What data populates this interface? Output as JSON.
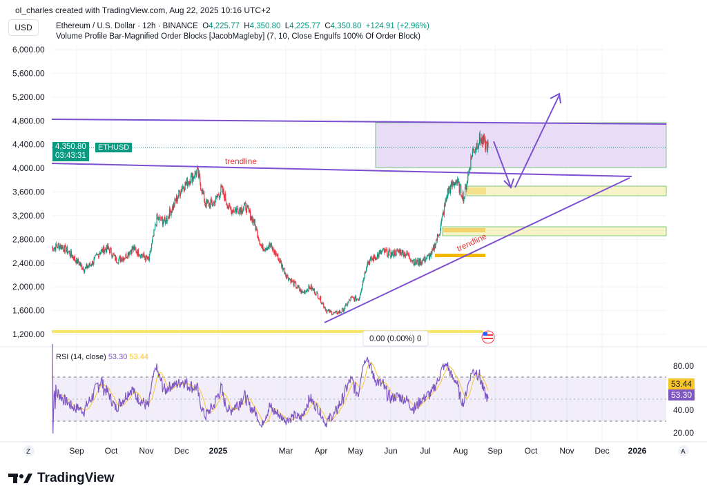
{
  "credit": "ol_charles created with TradingView.com, Aug 22, 2025 10:16 UTC+2",
  "currency": "USD",
  "symbol": {
    "name": "Ethereum / U.S. Dollar · 12h · BINANCE",
    "o_label": "O",
    "o": "4,225.77",
    "h_label": "H",
    "h": "4,350.80",
    "l_label": "L",
    "l": "4,225.77",
    "c_label": "C",
    "c": "4,350.80",
    "change": "+124.91 (+2.96%)"
  },
  "indicator": "Volume Profile Bar-Magnified Order Blocks [JacobMagleby] (7, 10, Close Engulfs 100% Of Order Block)",
  "price_tag": {
    "price": "4,350.80",
    "countdown": "03:43:31",
    "ticker": "ETHUSD"
  },
  "annotations": {
    "trendline_upper": "trendline",
    "trendline_lower": "trendline",
    "measure": "0.00 (0.00%) 0"
  },
  "rsi": {
    "label": "RSI (14, close)",
    "value1": "53.30",
    "value2": "53.44",
    "ticks": [
      "80.00",
      "40.00",
      "20.00"
    ]
  },
  "scale_buttons": {
    "left": "Z",
    "right": "A"
  },
  "logo": "TradingView",
  "colors": {
    "up": "#089981",
    "down": "#f23645",
    "drawing": "#7b4fd0",
    "rsi": "#7e57c2",
    "rsi_ma": "#f7c529",
    "zone": "#f7f3b0"
  },
  "chart_data": {
    "type": "candlestick",
    "interval": "12h",
    "y_ticks": [
      "6,000.00",
      "5,600.00",
      "5,200.00",
      "4,800.00",
      "4,400.00",
      "4,000.00",
      "3,600.00",
      "3,200.00",
      "2,800.00",
      "2,400.00",
      "2,000.00",
      "1,600.00",
      "1,200.00"
    ],
    "ylim": [
      1200,
      6000
    ],
    "x_ticks": [
      "Sep",
      "Oct",
      "Nov",
      "Dec",
      "2025",
      "Mar",
      "Apr",
      "May",
      "Jun",
      "Jul",
      "Aug",
      "Sep",
      "Oct",
      "Nov",
      "Dec",
      "2026"
    ],
    "approx_weekly_closes": [
      2650,
      2700,
      2600,
      2450,
      2300,
      2400,
      2600,
      2650,
      2450,
      2500,
      2650,
      2550,
      2450,
      3150,
      3100,
      3350,
      3650,
      3800,
      3950,
      3400,
      3400,
      3650,
      3300,
      3300,
      3350,
      3100,
      2650,
      2700,
      2500,
      2200,
      2050,
      1900,
      2000,
      1850,
      1600,
      1550,
      1600,
      1800,
      1800,
      2400,
      2500,
      2600,
      2550,
      2600,
      2550,
      2400,
      2450,
      2550,
      2950,
      3600,
      3800,
      3500,
      4250,
      4500,
      4350
    ],
    "last_price": 4350.8
  }
}
